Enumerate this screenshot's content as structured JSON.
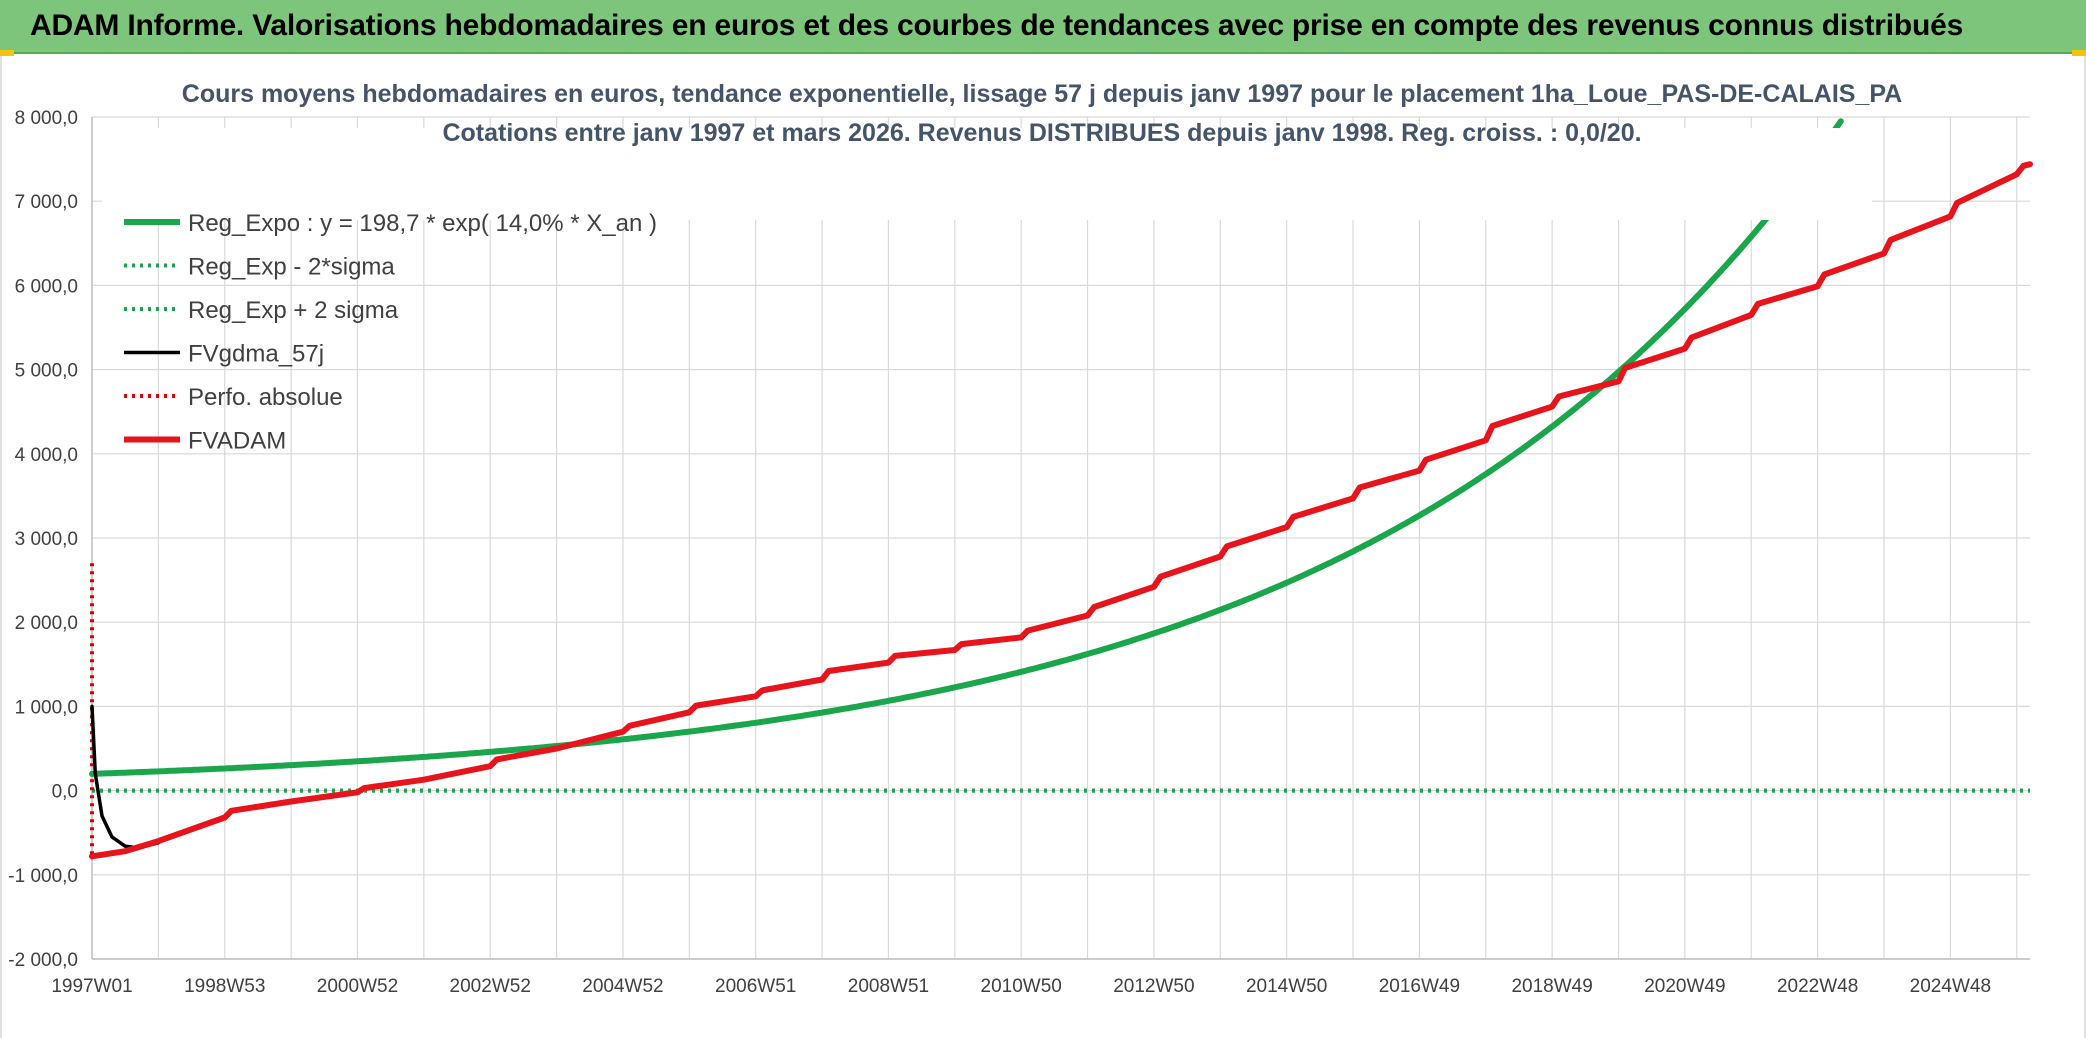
{
  "banner": {
    "title": "ADAM Informe. Valorisations hebdomadaires en euros et des courbes de tendances avec prise en compte des revenus connus distribués"
  },
  "colors": {
    "banner_bg": "#7dc57a",
    "reg_expo": "#1aa64b",
    "sigma": "#1aa64b",
    "fvgdma": "#000000",
    "perfo": "#e00000",
    "fvadam": "#e8141b",
    "grid": "#d9d9d9"
  },
  "chart_data": {
    "type": "line",
    "title": "Cours moyens hebdomadaires en euros, tendance exponentielle, lissage 57 j depuis janv 1997 pour le placement 1ha_Loue_PAS-DE-CALAIS_PA",
    "subtitle": "Cotations entre janv 1997 et mars 2026. Revenus DISTRIBUES depuis janv 1998. Reg. croiss. : 0,0/20.",
    "ylim": [
      -2000,
      8000
    ],
    "y_ticks": [
      "-2 000,0",
      "-1 000,0",
      "0,0",
      "1 000,0",
      "2 000,0",
      "3 000,0",
      "4 000,0",
      "5 000,0",
      "6 000,0",
      "7 000,0",
      "8 000,0"
    ],
    "x_range_years": [
      1997.0,
      2026.2
    ],
    "x_ticks": [
      {
        "label": "1997W01",
        "year": 1997.0
      },
      {
        "label": "1998W53",
        "year": 1999.0
      },
      {
        "label": "2000W52",
        "year": 2001.0
      },
      {
        "label": "2002W52",
        "year": 2003.0
      },
      {
        "label": "2004W52",
        "year": 2005.0
      },
      {
        "label": "2006W51",
        "year": 2007.0
      },
      {
        "label": "2008W51",
        "year": 2009.0
      },
      {
        "label": "2010W50",
        "year": 2011.0
      },
      {
        "label": "2012W50",
        "year": 2013.0
      },
      {
        "label": "2014W50",
        "year": 2015.0
      },
      {
        "label": "2016W49",
        "year": 2017.0
      },
      {
        "label": "2018W49",
        "year": 2019.0
      },
      {
        "label": "2020W49",
        "year": 2021.0
      },
      {
        "label": "2022W48",
        "year": 2023.0
      },
      {
        "label": "2024W48",
        "year": 2025.0
      }
    ],
    "series": [
      {
        "name": "Reg_Expo : y = 198,7 * exp( 14,0% *  X_an )",
        "style": "solid-thick",
        "color": "#1aa64b",
        "formula": {
          "a": 198.7,
          "rate": 0.14,
          "x0_year": 1997.0
        }
      },
      {
        "name": "Reg_Exp - 2*sigma",
        "style": "dotted",
        "color": "#1aa64b",
        "points": [
          [
            1997.0,
            0
          ],
          [
            2026.2,
            0
          ]
        ]
      },
      {
        "name": "Reg_Exp + 2 sigma",
        "style": "dotted",
        "color": "#1aa64b",
        "points": [
          [
            1997.0,
            0
          ],
          [
            2026.2,
            0
          ]
        ]
      },
      {
        "name": "FVgdma_57j",
        "style": "solid",
        "color": "#000000",
        "points": [
          [
            1997.0,
            1000
          ],
          [
            1997.05,
            200
          ],
          [
            1997.15,
            -300
          ],
          [
            1997.3,
            -550
          ],
          [
            1997.5,
            -660
          ],
          [
            1997.7,
            -680
          ],
          [
            1998.0,
            -620
          ]
        ]
      },
      {
        "name": "Perfo. absolue",
        "style": "dotted",
        "color": "#e00000",
        "points": [
          [
            1997.0,
            2700
          ],
          [
            1997.0,
            -780
          ]
        ]
      },
      {
        "name": "FVADAM",
        "style": "solid-thick",
        "color": "#e8141b",
        "points": [
          [
            1997.0,
            -780
          ],
          [
            1997.5,
            -720
          ],
          [
            1998.0,
            -600
          ],
          [
            1999.0,
            -320
          ],
          [
            1999.1,
            -240
          ],
          [
            2000.0,
            -130
          ],
          [
            2001.0,
            -20
          ],
          [
            2001.1,
            30
          ],
          [
            2002.0,
            130
          ],
          [
            2003.0,
            290
          ],
          [
            2003.1,
            370
          ],
          [
            2004.0,
            500
          ],
          [
            2005.0,
            700
          ],
          [
            2005.1,
            770
          ],
          [
            2006.0,
            930
          ],
          [
            2006.1,
            1010
          ],
          [
            2007.0,
            1120
          ],
          [
            2007.1,
            1190
          ],
          [
            2008.0,
            1320
          ],
          [
            2008.1,
            1420
          ],
          [
            2009.0,
            1520
          ],
          [
            2009.1,
            1600
          ],
          [
            2010.0,
            1670
          ],
          [
            2010.1,
            1740
          ],
          [
            2011.0,
            1820
          ],
          [
            2011.1,
            1900
          ],
          [
            2012.0,
            2080
          ],
          [
            2012.1,
            2180
          ],
          [
            2013.0,
            2420
          ],
          [
            2013.1,
            2540
          ],
          [
            2014.0,
            2780
          ],
          [
            2014.1,
            2900
          ],
          [
            2015.0,
            3130
          ],
          [
            2015.1,
            3250
          ],
          [
            2016.0,
            3470
          ],
          [
            2016.1,
            3600
          ],
          [
            2017.0,
            3800
          ],
          [
            2017.1,
            3930
          ],
          [
            2018.0,
            4160
          ],
          [
            2018.1,
            4330
          ],
          [
            2019.0,
            4560
          ],
          [
            2019.1,
            4680
          ],
          [
            2020.0,
            4860
          ],
          [
            2020.1,
            5020
          ],
          [
            2021.0,
            5250
          ],
          [
            2021.1,
            5380
          ],
          [
            2022.0,
            5650
          ],
          [
            2022.1,
            5780
          ],
          [
            2023.0,
            5990
          ],
          [
            2023.1,
            6130
          ],
          [
            2024.0,
            6380
          ],
          [
            2024.1,
            6540
          ],
          [
            2025.0,
            6820
          ],
          [
            2025.1,
            6980
          ],
          [
            2026.0,
            7320
          ],
          [
            2026.1,
            7420
          ],
          [
            2026.2,
            7440
          ]
        ]
      }
    ]
  }
}
